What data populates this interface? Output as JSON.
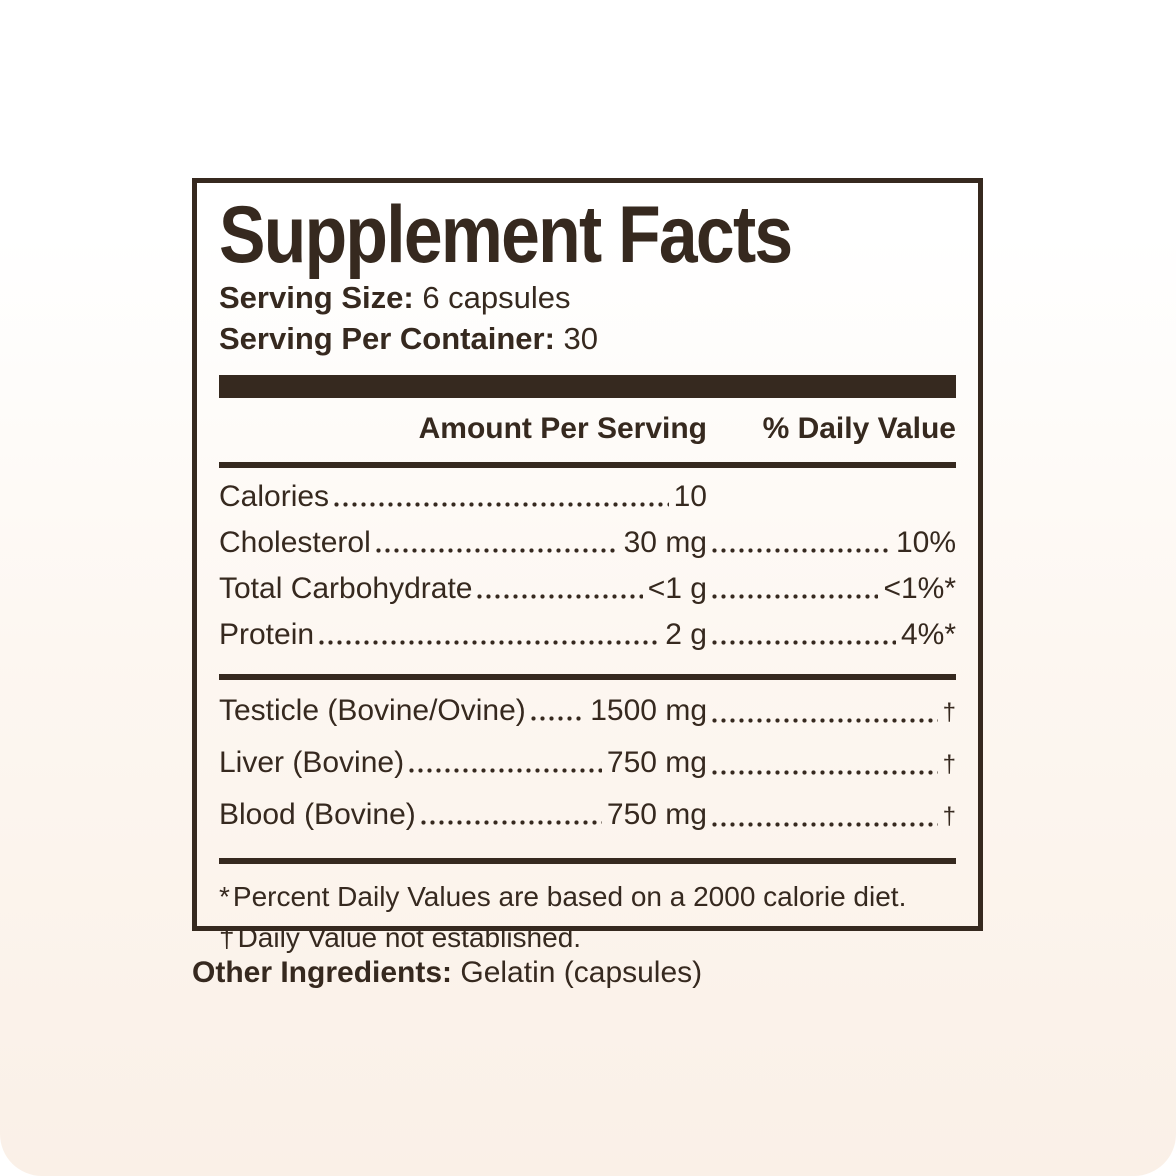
{
  "colors": {
    "ink": "#36291f",
    "background_top": "#ffffff",
    "background_bottom": "#faf0e7"
  },
  "label": {
    "title": "Supplement Facts",
    "serving_size_label": "Serving Size:",
    "serving_size_value": "6 capsules",
    "servings_per_container_label": "Serving Per Container:",
    "servings_per_container_value": "30",
    "columns": {
      "amount": "Amount Per Serving",
      "daily_value": "% Daily Value"
    },
    "nutrients": [
      {
        "name": "Calories",
        "amount": "10",
        "dv": ""
      },
      {
        "name": "Cholesterol",
        "amount": "30 mg",
        "dv": "10%"
      },
      {
        "name": "Total Carbohydrate",
        "amount": "<1 g",
        "dv": "<1%*"
      },
      {
        "name": "Protein",
        "amount": "2 g",
        "dv": "4%*"
      }
    ],
    "supplement_rows": [
      {
        "name": "Testicle (Bovine/Ovine)",
        "amount": "1500 mg",
        "dv": "†"
      },
      {
        "name": "Liver (Bovine)",
        "amount": "750 mg",
        "dv": "†"
      },
      {
        "name": "Blood (Bovine)",
        "amount": "750 mg",
        "dv": "†"
      }
    ],
    "footnotes": [
      {
        "symbol": "*",
        "text": "Percent Daily Values are based on a 2000 calorie diet."
      },
      {
        "symbol": "†",
        "text": "Daily Value not established."
      }
    ],
    "other_ingredients_label": "Other Ingredients:",
    "other_ingredients_value": "Gelatin (capsules)"
  }
}
